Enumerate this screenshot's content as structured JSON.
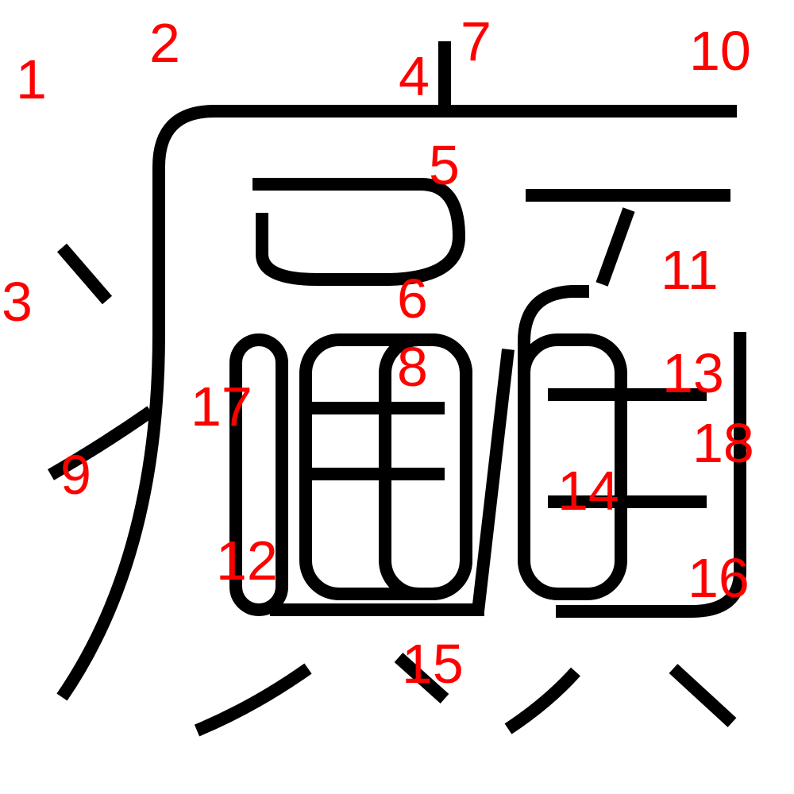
{
  "colors": {
    "strokes": "#000000",
    "numbers": "#ff0000",
    "background": "#ffffff"
  },
  "labels": [
    "1",
    "2",
    "3",
    "4",
    "5",
    "6",
    "7",
    "8",
    "9",
    "10",
    "11",
    "12",
    "13",
    "14",
    "15",
    "16",
    "17",
    "18"
  ]
}
